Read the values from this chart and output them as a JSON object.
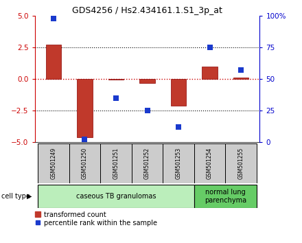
{
  "title": "GDS4256 / Hs2.434161.1.S1_3p_at",
  "samples": [
    "GSM501249",
    "GSM501250",
    "GSM501251",
    "GSM501252",
    "GSM501253",
    "GSM501254",
    "GSM501255"
  ],
  "transformed_count": [
    2.7,
    -4.6,
    -0.05,
    -0.3,
    -2.1,
    1.0,
    0.1
  ],
  "percentile_rank": [
    98,
    2,
    35,
    25,
    12,
    75,
    57
  ],
  "ylim_left": [
    -5,
    5
  ],
  "ylim_right": [
    0,
    100
  ],
  "yticks_left": [
    -5,
    -2.5,
    0,
    2.5,
    5
  ],
  "yticks_right": [
    0,
    25,
    50,
    75,
    100
  ],
  "ytick_labels_right": [
    "0",
    "25",
    "50",
    "75",
    "100%"
  ],
  "hlines": [
    -2.5,
    0,
    2.5
  ],
  "bar_color": "#c0392b",
  "bar_width": 0.5,
  "dot_color": "#1a3acd",
  "dot_size": 40,
  "dot_marker": "s",
  "cell_types": [
    {
      "label": "caseous TB granulomas",
      "indices": [
        0,
        1,
        2,
        3,
        4
      ],
      "color": "#bbeebb"
    },
    {
      "label": "normal lung\nparenchyma",
      "indices": [
        5,
        6
      ],
      "color": "#66cc66"
    }
  ],
  "cell_type_label": "cell type",
  "legend_red_label": "transformed count",
  "legend_blue_label": "percentile rank within the sample",
  "tick_color_left": "#cc0000",
  "tick_color_right": "#0000cc",
  "background_color": "#ffffff",
  "zero_line_color": "#cc0000",
  "grid_line_color": "#000000",
  "sample_box_color": "#cccccc",
  "bar_edge_color": "#8b0000"
}
